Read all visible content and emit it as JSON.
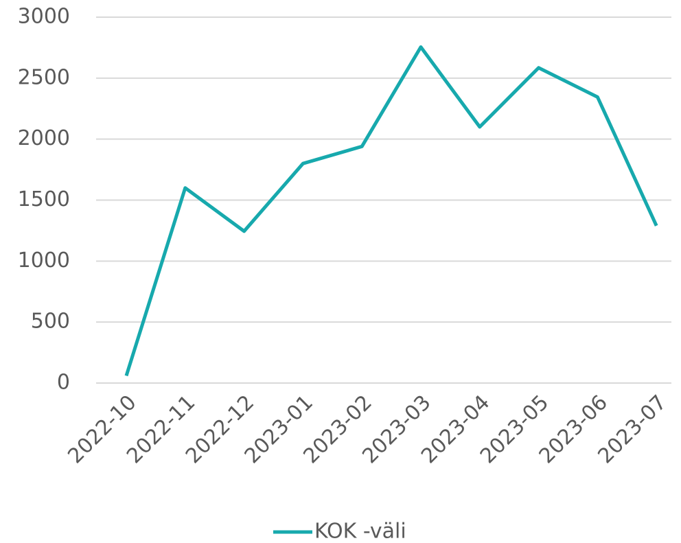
{
  "chart_data": {
    "type": "line",
    "categories": [
      "2022-10",
      "2022-11",
      "2022-12",
      "2023-01",
      "2023-02",
      "2023-03",
      "2023-04",
      "2023-05",
      "2023-06",
      "2023-07"
    ],
    "series": [
      {
        "name": "KOK -väli",
        "color": "#17a9ad",
        "values": [
          60,
          1600,
          1245,
          1800,
          1940,
          2755,
          2100,
          2585,
          2345,
          1290
        ]
      }
    ],
    "ylim": [
      0,
      3000
    ],
    "yticks": [
      0,
      500,
      1000,
      1500,
      2000,
      2500,
      3000
    ],
    "grid": true,
    "legend": "bottom"
  }
}
